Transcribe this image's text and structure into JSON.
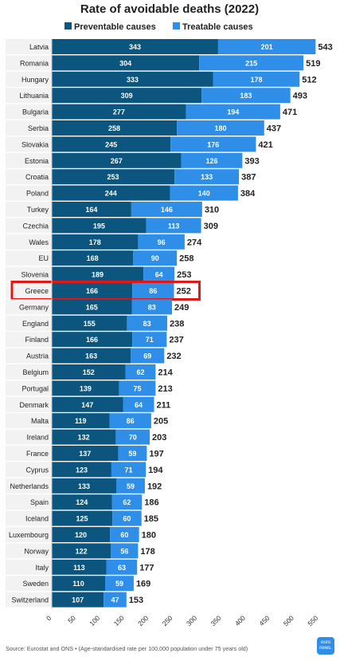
{
  "colors": {
    "preventable": "#0b557f",
    "treatable": "#2f8fe8",
    "highlight": "#e01818",
    "row_bg": "#f2f2f2",
    "text": "#222222"
  },
  "chart_data": {
    "type": "bar",
    "orientation": "horizontal",
    "stacked": true,
    "title": "Rate of avoidable deaths (2022)",
    "legend_position": "top",
    "highlighted_category": "Greece",
    "categories": [
      "Latvia",
      "Romania",
      "Hungary",
      "Lithuania",
      "Bulgaria",
      "Serbia",
      "Slovakia",
      "Estonia",
      "Croatia",
      "Poland",
      "Turkey",
      "Czechia",
      "Wales",
      "EU",
      "Slovenia",
      "Greece",
      "Germany",
      "England",
      "Finland",
      "Austria",
      "Belgium",
      "Portugal",
      "Denmark",
      "Malta",
      "Ireland",
      "France",
      "Cyprus",
      "Netherlands",
      "Spain",
      "Iceland",
      "Luxembourg",
      "Norway",
      "Italy",
      "Sweden",
      "Switzerland"
    ],
    "series": [
      {
        "name": "Preventable causes",
        "values": [
          343,
          304,
          333,
          309,
          277,
          258,
          245,
          267,
          253,
          244,
          164,
          195,
          178,
          168,
          189,
          166,
          165,
          155,
          166,
          163,
          152,
          139,
          147,
          119,
          132,
          137,
          123,
          133,
          124,
          125,
          120,
          122,
          113,
          110,
          107
        ]
      },
      {
        "name": "Treatable causes",
        "values": [
          201,
          215,
          178,
          183,
          194,
          180,
          176,
          126,
          133,
          140,
          146,
          113,
          96,
          90,
          64,
          86,
          83,
          83,
          71,
          69,
          62,
          75,
          64,
          86,
          70,
          59,
          71,
          59,
          62,
          60,
          60,
          56,
          63,
          59,
          47
        ]
      }
    ],
    "totals": [
      543,
      519,
      512,
      493,
      471,
      437,
      421,
      393,
      387,
      384,
      310,
      309,
      274,
      258,
      253,
      252,
      249,
      238,
      237,
      232,
      214,
      213,
      211,
      205,
      203,
      197,
      194,
      192,
      186,
      185,
      180,
      178,
      177,
      169,
      153
    ],
    "xlim": [
      0,
      550
    ],
    "xticks": [
      0,
      50,
      100,
      150,
      200,
      250,
      300,
      350,
      400,
      450,
      500,
      550
    ],
    "grid": false
  },
  "footer": {
    "source": "Source: Eurostat and ONS • (Age-standardised rate per 100,000 population under 75 years old)",
    "logo_text": "euro news."
  }
}
